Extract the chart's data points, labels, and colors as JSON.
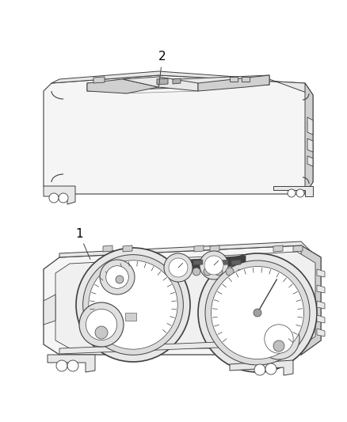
{
  "background_color": "#ffffff",
  "line_color": "#404040",
  "line_color_light": "#888888",
  "fill_light": "#f5f5f5",
  "fill_mid": "#e8e8e8",
  "fill_dark": "#d0d0d0",
  "fill_verydark": "#b0b0b0",
  "part1_label": "1",
  "part2_label": "2",
  "figsize": [
    4.38,
    5.33
  ],
  "dpi": 100
}
